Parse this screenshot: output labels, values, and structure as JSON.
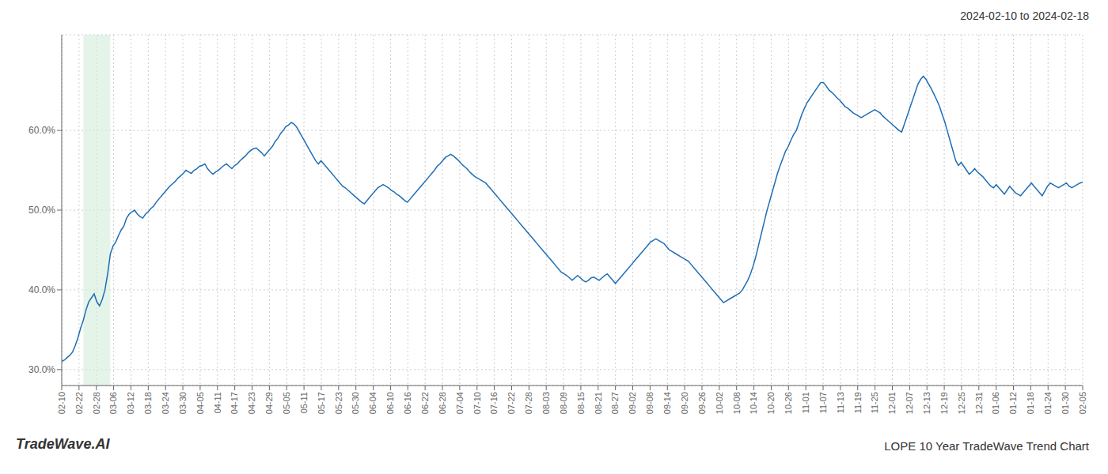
{
  "chart_data": {
    "type": "line",
    "title": "LOPE 10 Year TradeWave Trend Chart",
    "subtitle": "2024-02-10 to 2024-02-18",
    "annotations": [
      {
        "text": "TradeWave.AI"
      }
    ],
    "color": "#1f6eb5",
    "grid": true,
    "bands": [
      {
        "x": [
          8,
          18
        ],
        "color": "#d4edda"
      }
    ],
    "xlim": [
      0,
      378
    ],
    "xticks": [
      {
        "value": 0,
        "label": "02-10"
      },
      {
        "value": 6.4068,
        "label": "02-22"
      },
      {
        "value": 12.8136,
        "label": "02-28"
      },
      {
        "value": 19.2203,
        "label": "03-06"
      },
      {
        "value": 25.6271,
        "label": "03-12"
      },
      {
        "value": 32.0339,
        "label": "03-18"
      },
      {
        "value": 38.4407,
        "label": "03-24"
      },
      {
        "value": 44.8475,
        "label": "03-30"
      },
      {
        "value": 51.2542,
        "label": "04-05"
      },
      {
        "value": 57.661,
        "label": "04-11"
      },
      {
        "value": 64.0678,
        "label": "04-17"
      },
      {
        "value": 70.4746,
        "label": "04-23"
      },
      {
        "value": 76.8814,
        "label": "04-29"
      },
      {
        "value": 83.2881,
        "label": "05-05"
      },
      {
        "value": 89.6949,
        "label": "05-11"
      },
      {
        "value": 96.1017,
        "label": "05-17"
      },
      {
        "value": 102.5085,
        "label": "05-23"
      },
      {
        "value": 108.9153,
        "label": "05-30"
      },
      {
        "value": 115.322,
        "label": "06-04"
      },
      {
        "value": 121.7288,
        "label": "06-10"
      },
      {
        "value": 128.1356,
        "label": "06-16"
      },
      {
        "value": 134.5424,
        "label": "06-22"
      },
      {
        "value": 140.9492,
        "label": "06-28"
      },
      {
        "value": 147.3559,
        "label": "07-04"
      },
      {
        "value": 153.7627,
        "label": "07-10"
      },
      {
        "value": 160.1695,
        "label": "07-16"
      },
      {
        "value": 166.5763,
        "label": "07-22"
      },
      {
        "value": 172.9831,
        "label": "07-28"
      },
      {
        "value": 179.3898,
        "label": "08-03"
      },
      {
        "value": 185.7966,
        "label": "08-09"
      },
      {
        "value": 192.2034,
        "label": "08-15"
      },
      {
        "value": 198.6102,
        "label": "08-21"
      },
      {
        "value": 205.0169,
        "label": "08-27"
      },
      {
        "value": 211.4237,
        "label": "09-02"
      },
      {
        "value": 217.8305,
        "label": "09-08"
      },
      {
        "value": 224.2373,
        "label": "09-14"
      },
      {
        "value": 230.6441,
        "label": "09-20"
      },
      {
        "value": 237.0508,
        "label": "09-26"
      },
      {
        "value": 243.4576,
        "label": "10-02"
      },
      {
        "value": 249.8644,
        "label": "10-08"
      },
      {
        "value": 256.2712,
        "label": "10-14"
      },
      {
        "value": 262.678,
        "label": "10-20"
      },
      {
        "value": 269.0847,
        "label": "10-26"
      },
      {
        "value": 275.4915,
        "label": "11-01"
      },
      {
        "value": 281.8983,
        "label": "11-07"
      },
      {
        "value": 288.3051,
        "label": "11-13"
      },
      {
        "value": 294.7119,
        "label": "11-19"
      },
      {
        "value": 301.1186,
        "label": "11-25"
      },
      {
        "value": 307.5254,
        "label": "12-01"
      },
      {
        "value": 313.9322,
        "label": "12-07"
      },
      {
        "value": 320.339,
        "label": "12-13"
      },
      {
        "value": 326.7458,
        "label": "12-19"
      },
      {
        "value": 333.1525,
        "label": "12-25"
      },
      {
        "value": 339.5593,
        "label": "12-31"
      },
      {
        "value": 345.9661,
        "label": "01-06"
      },
      {
        "value": 352.3729,
        "label": "01-12"
      },
      {
        "value": 358.7797,
        "label": "01-18"
      },
      {
        "value": 365.1864,
        "label": "01-24"
      },
      {
        "value": 371.5932,
        "label": "01-30"
      },
      {
        "value": 378,
        "label": "02-05"
      }
    ],
    "ylim": [
      0.28,
      0.72
    ],
    "yticks": [
      {
        "value": 0.3,
        "label": "30.0%"
      },
      {
        "value": 0.4,
        "label": "40.0%"
      },
      {
        "value": 0.5,
        "label": "50.0%"
      },
      {
        "value": 0.6,
        "label": "60.0%"
      }
    ],
    "x": [
      0,
      1,
      2,
      3,
      4,
      5,
      6,
      7,
      8,
      9,
      10,
      11,
      12,
      13,
      14,
      15,
      16,
      17,
      18,
      19,
      20,
      21,
      22,
      23,
      24,
      25,
      26,
      27,
      28,
      29,
      30,
      31,
      32,
      33,
      34,
      35,
      36,
      37,
      38,
      39,
      40,
      41,
      42,
      43,
      44,
      45,
      46,
      47,
      48,
      49,
      50,
      51,
      52,
      53,
      54,
      55,
      56,
      57,
      58,
      59,
      60,
      61,
      62,
      63,
      64,
      65,
      66,
      67,
      68,
      69,
      70,
      71,
      72,
      73,
      74,
      75,
      76,
      77,
      78,
      79,
      80,
      81,
      82,
      83,
      84,
      85,
      86,
      87,
      88,
      89,
      90,
      91,
      92,
      93,
      94,
      95,
      96,
      97,
      98,
      99,
      100,
      101,
      102,
      103,
      104,
      105,
      106,
      107,
      108,
      109,
      110,
      111,
      112,
      113,
      114,
      115,
      116,
      117,
      118,
      119,
      120,
      121,
      122,
      123,
      124,
      125,
      126,
      127,
      128,
      129,
      130,
      131,
      132,
      133,
      134,
      135,
      136,
      137,
      138,
      139,
      140,
      141,
      142,
      143,
      144,
      145,
      146,
      147,
      148,
      149,
      150,
      151,
      152,
      153,
      154,
      155,
      156,
      157,
      158,
      159,
      160,
      161,
      162,
      163,
      164,
      165,
      166,
      167,
      168,
      169,
      170,
      171,
      172,
      173,
      174,
      175,
      176,
      177,
      178,
      179,
      180,
      181,
      182,
      183,
      184,
      185,
      186,
      187,
      188,
      189,
      190,
      191,
      192,
      193,
      194,
      195,
      196,
      197,
      198,
      199,
      200,
      201,
      202,
      203,
      204,
      205,
      206,
      207,
      208,
      209,
      210,
      211,
      212,
      213,
      214,
      215,
      216,
      217,
      218,
      219,
      220,
      221,
      222,
      223,
      224,
      225,
      226,
      227,
      228,
      229,
      230,
      231,
      232,
      233,
      234,
      235,
      236,
      237,
      238,
      239,
      240,
      241,
      242,
      243,
      244,
      245,
      246,
      247,
      248,
      249,
      250,
      251,
      252,
      253,
      254,
      255,
      256,
      257,
      258,
      259,
      260,
      261,
      262,
      263,
      264,
      265,
      266,
      267,
      268,
      269,
      270,
      271,
      272,
      273,
      274,
      275,
      276,
      277,
      278,
      279,
      280,
      281,
      282,
      283,
      284,
      285,
      286,
      287,
      288,
      289,
      290,
      291,
      292,
      293,
      294,
      295,
      296,
      297,
      298,
      299,
      300,
      301,
      302,
      303,
      304,
      305,
      306,
      307,
      308,
      309,
      310,
      311,
      312,
      313,
      314,
      315,
      316,
      317,
      318,
      319,
      320,
      321,
      322,
      323,
      324,
      325,
      326,
      327,
      328,
      329,
      330,
      331,
      332,
      333,
      334,
      335,
      336,
      337,
      338,
      339,
      340,
      341,
      342,
      343,
      344,
      345,
      346,
      347,
      348,
      349,
      350,
      351,
      352,
      353,
      354,
      355,
      356,
      357,
      358,
      359,
      360,
      361,
      362,
      363,
      364,
      365,
      366,
      367,
      368,
      369,
      370,
      371,
      372,
      373,
      374,
      375,
      376,
      377,
      378
    ],
    "values": [
      0.31,
      0.312,
      0.315,
      0.318,
      0.322,
      0.33,
      0.34,
      0.352,
      0.362,
      0.375,
      0.385,
      0.39,
      0.395,
      0.385,
      0.38,
      0.388,
      0.4,
      0.42,
      0.445,
      0.455,
      0.46,
      0.468,
      0.475,
      0.48,
      0.49,
      0.495,
      0.498,
      0.5,
      0.495,
      0.492,
      0.49,
      0.495,
      0.498,
      0.502,
      0.505,
      0.51,
      0.514,
      0.518,
      0.522,
      0.526,
      0.53,
      0.533,
      0.536,
      0.54,
      0.543,
      0.546,
      0.55,
      0.548,
      0.546,
      0.55,
      0.552,
      0.555,
      0.556,
      0.558,
      0.552,
      0.548,
      0.545,
      0.548,
      0.55,
      0.553,
      0.556,
      0.558,
      0.555,
      0.552,
      0.556,
      0.558,
      0.562,
      0.565,
      0.568,
      0.572,
      0.575,
      0.577,
      0.578,
      0.575,
      0.572,
      0.568,
      0.572,
      0.576,
      0.58,
      0.586,
      0.59,
      0.596,
      0.6,
      0.605,
      0.607,
      0.61,
      0.608,
      0.604,
      0.598,
      0.592,
      0.586,
      0.58,
      0.574,
      0.568,
      0.562,
      0.558,
      0.562,
      0.558,
      0.554,
      0.55,
      0.546,
      0.542,
      0.538,
      0.534,
      0.53,
      0.528,
      0.525,
      0.522,
      0.519,
      0.516,
      0.513,
      0.51,
      0.508,
      0.512,
      0.516,
      0.52,
      0.524,
      0.528,
      0.53,
      0.532,
      0.53,
      0.528,
      0.525,
      0.523,
      0.52,
      0.518,
      0.515,
      0.512,
      0.51,
      0.514,
      0.518,
      0.522,
      0.526,
      0.53,
      0.534,
      0.538,
      0.542,
      0.546,
      0.55,
      0.555,
      0.558,
      0.562,
      0.566,
      0.568,
      0.57,
      0.568,
      0.565,
      0.562,
      0.558,
      0.555,
      0.552,
      0.548,
      0.545,
      0.542,
      0.54,
      0.538,
      0.536,
      0.534,
      0.53,
      0.526,
      0.522,
      0.518,
      0.514,
      0.51,
      0.506,
      0.502,
      0.498,
      0.494,
      0.49,
      0.486,
      0.482,
      0.478,
      0.474,
      0.47,
      0.466,
      0.462,
      0.458,
      0.454,
      0.45,
      0.446,
      0.442,
      0.438,
      0.434,
      0.43,
      0.426,
      0.422,
      0.42,
      0.418,
      0.415,
      0.412,
      0.415,
      0.418,
      0.415,
      0.412,
      0.41,
      0.412,
      0.415,
      0.416,
      0.414,
      0.412,
      0.415,
      0.418,
      0.42,
      0.416,
      0.412,
      0.408,
      0.412,
      0.416,
      0.42,
      0.424,
      0.428,
      0.432,
      0.436,
      0.44,
      0.444,
      0.448,
      0.452,
      0.456,
      0.46,
      0.462,
      0.464,
      0.462,
      0.46,
      0.458,
      0.454,
      0.45,
      0.448,
      0.446,
      0.444,
      0.442,
      0.44,
      0.438,
      0.436,
      0.432,
      0.428,
      0.424,
      0.42,
      0.416,
      0.412,
      0.408,
      0.404,
      0.4,
      0.396,
      0.392,
      0.388,
      0.384,
      0.386,
      0.388,
      0.39,
      0.392,
      0.394,
      0.396,
      0.4,
      0.406,
      0.412,
      0.42,
      0.43,
      0.442,
      0.456,
      0.47,
      0.484,
      0.498,
      0.51,
      0.522,
      0.534,
      0.546,
      0.556,
      0.565,
      0.574,
      0.58,
      0.588,
      0.595,
      0.6,
      0.61,
      0.62,
      0.628,
      0.635,
      0.64,
      0.645,
      0.65,
      0.655,
      0.66,
      0.66,
      0.656,
      0.651,
      0.648,
      0.645,
      0.641,
      0.638,
      0.634,
      0.63,
      0.628,
      0.625,
      0.622,
      0.62,
      0.618,
      0.616,
      0.618,
      0.62,
      0.622,
      0.624,
      0.626,
      0.624,
      0.622,
      0.618,
      0.615,
      0.612,
      0.609,
      0.606,
      0.603,
      0.6,
      0.598,
      0.608,
      0.618,
      0.628,
      0.638,
      0.648,
      0.658,
      0.664,
      0.668,
      0.664,
      0.658,
      0.652,
      0.645,
      0.638,
      0.63,
      0.62,
      0.61,
      0.598,
      0.586,
      0.574,
      0.562,
      0.556,
      0.56,
      0.555,
      0.55,
      0.545,
      0.548,
      0.552,
      0.548,
      0.545,
      0.542,
      0.538,
      0.534,
      0.53,
      0.528,
      0.532,
      0.528,
      0.524,
      0.52,
      0.525,
      0.53,
      0.526,
      0.522,
      0.52,
      0.518,
      0.522,
      0.526,
      0.53,
      0.534,
      0.53,
      0.526,
      0.522,
      0.518,
      0.524,
      0.53,
      0.534,
      0.532,
      0.53,
      0.528,
      0.53,
      0.532,
      0.534,
      0.53,
      0.528,
      0.53,
      0.532,
      0.534,
      0.535
    ]
  }
}
